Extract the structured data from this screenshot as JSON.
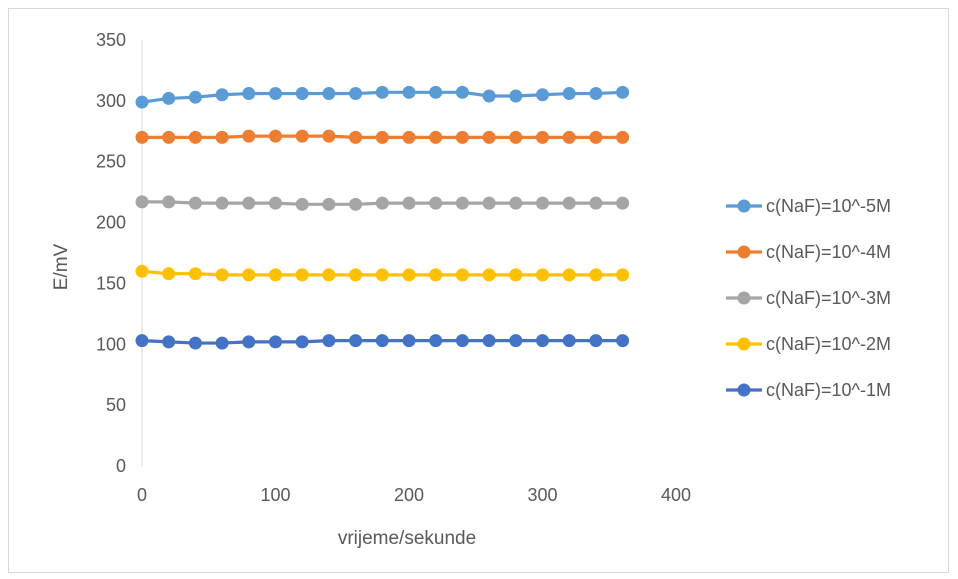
{
  "chart_data": {
    "type": "line",
    "title": "",
    "xlabel": "vrijeme/sekunde",
    "ylabel": "E/mV",
    "xlim": [
      0,
      400
    ],
    "ylim": [
      0,
      350
    ],
    "x_ticks": [
      "0",
      "100",
      "200",
      "300",
      "400"
    ],
    "y_ticks": [
      "0",
      "50",
      "100",
      "150",
      "200",
      "250",
      "300",
      "350"
    ],
    "grid": false,
    "legend_position": "right",
    "x": [
      0,
      20,
      40,
      60,
      80,
      100,
      120,
      140,
      160,
      180,
      200,
      220,
      240,
      260,
      280,
      300,
      320,
      340,
      360
    ],
    "series": [
      {
        "name": "c(NaF)=10^-5M",
        "color": "#5B9BD5",
        "values": [
          299,
          302,
          303,
          305,
          306,
          306,
          306,
          306,
          306,
          307,
          307,
          307,
          307,
          304,
          304,
          305,
          306,
          306,
          307
        ]
      },
      {
        "name": "c(NaF)=10^-4M",
        "color": "#ED7D31",
        "values": [
          270,
          270,
          270,
          270,
          271,
          271,
          271,
          271,
          270,
          270,
          270,
          270,
          270,
          270,
          270,
          270,
          270,
          270,
          270
        ]
      },
      {
        "name": "c(NaF)=10^-3M",
        "color": "#A5A5A5",
        "values": [
          217,
          217,
          216,
          216,
          216,
          216,
          215,
          215,
          215,
          216,
          216,
          216,
          216,
          216,
          216,
          216,
          216,
          216,
          216
        ]
      },
      {
        "name": "c(NaF)=10^-2M",
        "color": "#FFC000",
        "values": [
          160,
          158,
          158,
          157,
          157,
          157,
          157,
          157,
          157,
          157,
          157,
          157,
          157,
          157,
          157,
          157,
          157,
          157,
          157
        ]
      },
      {
        "name": "c(NaF)=10^-1M",
        "color": "#4472C4",
        "values": [
          103,
          102,
          101,
          101,
          102,
          102,
          102,
          103,
          103,
          103,
          103,
          103,
          103,
          103,
          103,
          103,
          103,
          103,
          103
        ]
      }
    ]
  }
}
